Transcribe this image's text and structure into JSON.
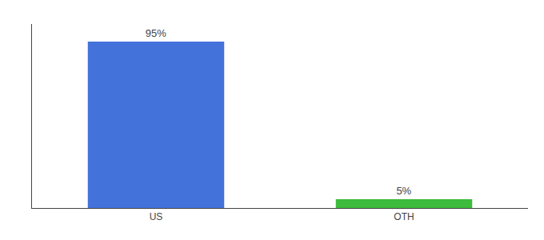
{
  "chart_data": {
    "type": "bar",
    "categories": [
      "US",
      "OTH"
    ],
    "values": [
      95,
      5
    ],
    "value_labels": [
      "95%",
      "5%"
    ],
    "colors": [
      "#4472db",
      "#3dbb3d"
    ],
    "ylim": [
      0,
      105
    ],
    "grid": false,
    "data_labels": true,
    "tick_labels": "x"
  }
}
